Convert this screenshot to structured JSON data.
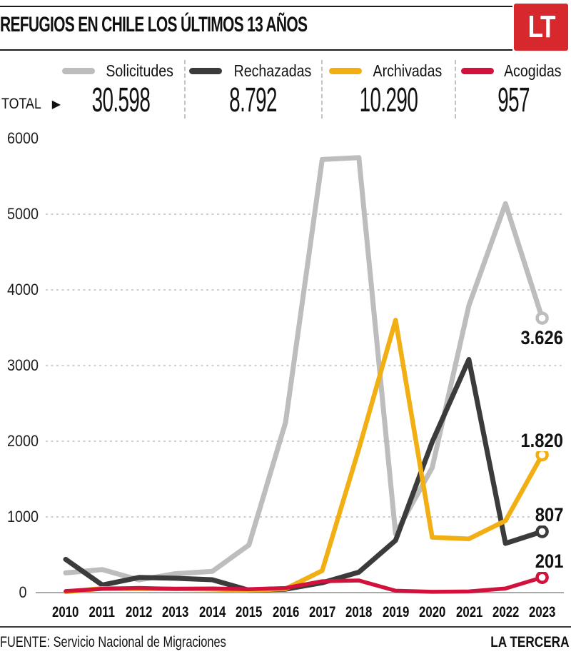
{
  "header": {
    "title": "REFUGIOS EN CHILE LOS ÚLTIMOS 13 AÑOS",
    "logo_text": "LT"
  },
  "legend": {
    "total_label": "TOTAL",
    "total_arrow": "▶",
    "entries": [
      {
        "name": "Solicitudes",
        "total": "30.598",
        "color": "#bdbdbd"
      },
      {
        "name": "Rechazadas",
        "total": "8.792",
        "color": "#3b3b3b"
      },
      {
        "name": "Archivadas",
        "total": "10.290",
        "color": "#f2af13"
      },
      {
        "name": "Acogidas",
        "total": "957",
        "color": "#d0123c"
      }
    ]
  },
  "chart_data": {
    "type": "line",
    "title": "REFUGIOS EN CHILE LOS ÚLTIMOS 13 AÑOS",
    "xlabel": "",
    "ylabel": "",
    "x": [
      2010,
      2011,
      2012,
      2013,
      2014,
      2015,
      2016,
      2017,
      2018,
      2019,
      2020,
      2021,
      2022,
      2023
    ],
    "ylim": [
      0,
      6000
    ],
    "yticks": [
      6000,
      5000,
      4000,
      3000,
      2000,
      1000,
      0
    ],
    "grid": "horizontal-dashed",
    "legend_position": "top",
    "series": [
      {
        "name": "Solicitudes",
        "color": "#bdbdbd",
        "width": 7,
        "values": [
          260,
          305,
          168,
          250,
          280,
          629,
          2250,
          5723,
          5748,
          777,
          1650,
          3792,
          5140,
          3626
        ],
        "total": 30598,
        "end_label": "3.626"
      },
      {
        "name": "Rechazadas",
        "color": "#3b3b3b",
        "width": 7,
        "values": [
          440,
          100,
          200,
          190,
          170,
          30,
          45,
          130,
          270,
          690,
          1990,
          3080,
          650,
          807
        ],
        "total": 8792,
        "end_label": "807"
      },
      {
        "name": "Archivadas",
        "color": "#f2af13",
        "width": 6.5,
        "values": [
          10,
          55,
          50,
          50,
          45,
          30,
          50,
          290,
          1900,
          3600,
          730,
          710,
          950,
          1820
        ],
        "total": 10290,
        "end_label": "1.820"
      },
      {
        "name": "Acogidas",
        "color": "#d0123c",
        "width": 5.5,
        "values": [
          20,
          50,
          61,
          50,
          55,
          45,
          60,
          150,
          160,
          25,
          10,
          15,
          55,
          201
        ],
        "total": 957,
        "end_label": "201"
      }
    ]
  },
  "footer": {
    "source": "FUENTE: Servicio Nacional de Migraciones",
    "brand": "LA TERCERA"
  }
}
